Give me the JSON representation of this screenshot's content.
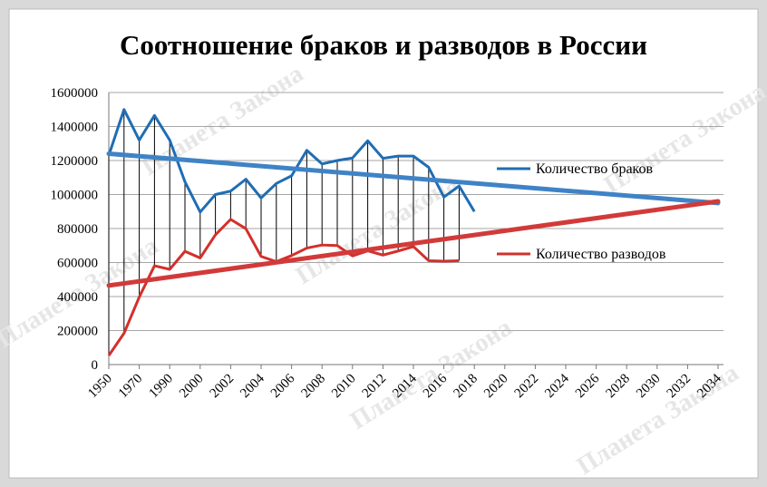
{
  "chart_data": {
    "type": "line",
    "title": "Соотношение браков и разводов в России",
    "watermark": "Планета Закона",
    "categories": [
      "1950",
      null,
      "1970",
      null,
      "1990",
      null,
      "2000",
      null,
      "2002",
      null,
      "2004",
      null,
      "2006",
      null,
      "2008",
      null,
      "2010",
      null,
      "2012",
      null,
      "2014",
      null,
      "2016",
      null,
      "2018",
      null,
      "2020",
      null,
      "2022",
      null,
      "2024",
      null,
      "2026",
      null,
      "2028",
      null,
      "2030",
      null,
      "2032",
      null,
      "2034"
    ],
    "series": [
      {
        "name": "Количество браков",
        "color": "#1f6db4",
        "values": [
          1230000,
          1500000,
          1320000,
          1465000,
          1320000,
          1075000,
          897000,
          1000000,
          1020000,
          1090000,
          980000,
          1065000,
          1110000,
          1260000,
          1180000,
          1200000,
          1215000,
          1316000,
          1213000,
          1226000,
          1226000,
          1160000,
          985000,
          1050000,
          900000,
          null,
          null,
          null,
          null,
          null,
          null,
          null,
          null,
          null,
          null,
          null,
          null,
          null,
          null,
          null,
          null
        ]
      },
      {
        "name": "Количество разводов",
        "color": "#d3302b",
        "values": [
          53000,
          184000,
          397000,
          581000,
          560000,
          666000,
          627000,
          763000,
          854000,
          799000,
          636000,
          605000,
          641000,
          685000,
          703000,
          700000,
          639000,
          669000,
          644000,
          668000,
          694000,
          611000,
          608000,
          611000,
          null,
          null,
          null,
          null,
          null,
          null,
          null,
          null,
          null,
          null,
          null,
          null,
          null,
          null,
          null,
          null,
          null
        ]
      }
    ],
    "trendlines": [
      {
        "color": "#3f83c6",
        "values": [
          1240000,
          950000
        ]
      },
      {
        "color": "#d23a3a",
        "values": [
          465000,
          960000
        ]
      }
    ],
    "high_low_lines": true,
    "ylim": [
      0,
      1600000
    ],
    "yticks": [
      0,
      200000,
      400000,
      600000,
      800000,
      1000000,
      1200000,
      1400000,
      1600000
    ],
    "grid": true,
    "legend": "right"
  }
}
